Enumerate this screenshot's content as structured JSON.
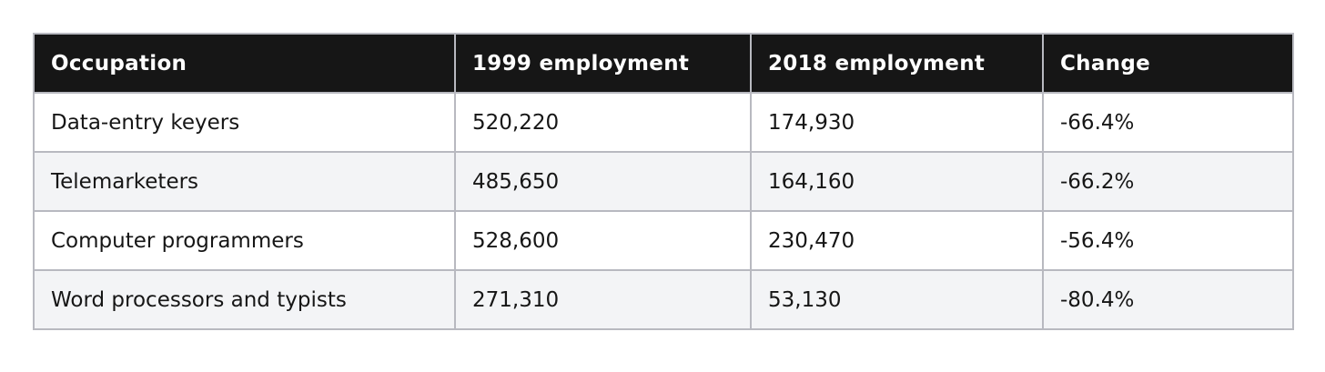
{
  "table": {
    "headers": [
      "Occupation",
      "1999 employment",
      "2018 employment",
      "Change"
    ],
    "rows": [
      [
        "Data-entry keyers",
        "520,220",
        "174,930",
        "-66.4%"
      ],
      [
        "Telemarketers",
        "485,650",
        "164,160",
        "-66.2%"
      ],
      [
        "Computer programmers",
        "528,600",
        "230,470",
        "-56.4%"
      ],
      [
        "Word processors and typists",
        "271,310",
        "53,130",
        "-80.4%"
      ]
    ]
  },
  "colors": {
    "header_bg": "#161616",
    "header_text": "#ffffff",
    "row_alt_bg": "#f3f4f6",
    "border": "#b8b9c0"
  }
}
